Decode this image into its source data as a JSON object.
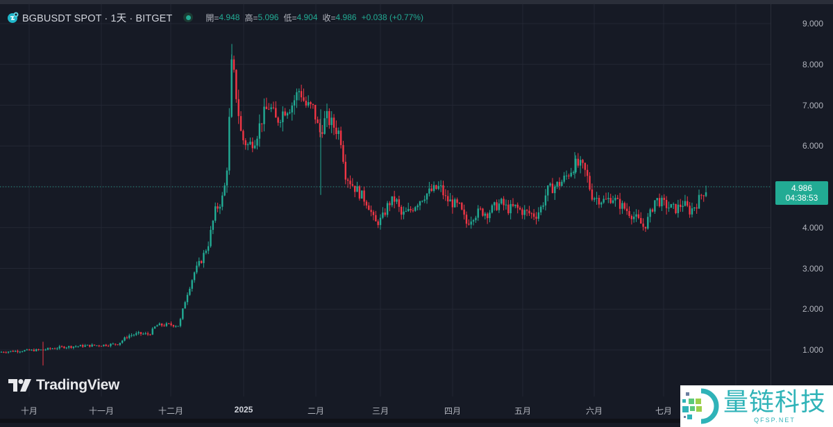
{
  "header": {
    "symbol_title": "BGBUSDT SPOT · 1天 · BITGET",
    "status": "market-open",
    "ohlc": {
      "open_label": "開=",
      "open": "4.948",
      "high_label": "高=",
      "high": "5.096",
      "low_label": "低=",
      "low": "4.904",
      "close_label": "收=",
      "close": "4.986",
      "change": "+0.038 (+0.77%)"
    }
  },
  "price_axis": {
    "ticks": [
      "9.000",
      "8.000",
      "7.000",
      "6.000",
      "4.000",
      "3.000",
      "2.000",
      "1.000"
    ],
    "current_price": "4.986",
    "countdown": "04:38:53"
  },
  "time_axis": {
    "labels": [
      "十月",
      "十一月",
      "十二月",
      "2025",
      "二月",
      "三月",
      "四月",
      "五月",
      "六月",
      "七月"
    ]
  },
  "branding": {
    "logo_text": "TradingView",
    "watermark_cn": "量链科技",
    "watermark_en": "QFSP.NET"
  },
  "colors": {
    "up": "#22ab94",
    "down": "#f23645",
    "background": "#161a25",
    "grid": "#232734",
    "price_line": "#22ab94"
  },
  "chart_data": {
    "type": "candlestick",
    "title": "BGBUSDT SPOT · 1天 · BITGET",
    "xlabel": "",
    "ylabel": "",
    "ylim": [
      0.3,
      9.5
    ],
    "grid": true,
    "x_ticks": [
      "十月",
      "十一月",
      "十二月",
      "2025",
      "二月",
      "三月",
      "四月",
      "五月",
      "六月",
      "七月"
    ],
    "y_ticks": [
      1,
      2,
      3,
      4,
      5,
      6,
      7,
      8,
      9
    ],
    "last": {
      "open": 4.948,
      "high": 5.096,
      "low": 4.904,
      "close": 4.986,
      "change": 0.038,
      "change_pct": 0.77
    },
    "monthly_path": [
      {
        "month": "2024-09 end",
        "close": 0.95
      },
      {
        "month": "2024-10",
        "close": 1.1
      },
      {
        "month": "2024-11",
        "close": 1.2
      },
      {
        "month": "2024-12 start",
        "close": 1.6
      },
      {
        "month": "2024-12 peak",
        "close": 8.1,
        "high": 8.5
      },
      {
        "month": "2025-01",
        "close": 7.3,
        "high": 7.9
      },
      {
        "month": "2025-02",
        "close": 5.0
      },
      {
        "month": "2025-03",
        "close": 4.3,
        "low": 3.7
      },
      {
        "month": "2025-04",
        "close": 4.5,
        "low": 3.75
      },
      {
        "month": "2025-05",
        "close": 5.3,
        "high": 5.85
      },
      {
        "month": "2025-06",
        "close": 4.3,
        "low": 3.95
      },
      {
        "month": "2025-07",
        "close": 4.986,
        "high": 5.096
      }
    ]
  }
}
